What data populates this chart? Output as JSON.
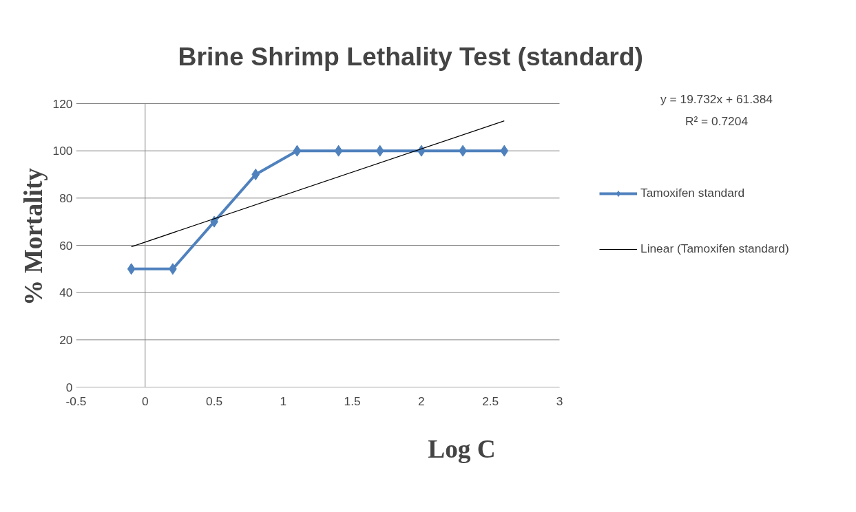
{
  "chart_data": {
    "type": "line",
    "title": "Brine Shrimp Lethality Test (standard)",
    "xlabel": "Log C",
    "ylabel": "% Mortality",
    "x": [
      -0.1,
      0.2,
      0.5,
      0.8,
      1.1,
      1.4,
      1.7,
      2.0,
      2.3,
      2.6
    ],
    "series": [
      {
        "name": "Tamoxifen standard",
        "color": "#4f81bd",
        "values": [
          50,
          50,
          70,
          90,
          100,
          100,
          100,
          100,
          100,
          100
        ],
        "marker": "diamond"
      },
      {
        "name": "Linear (Tamoxifen standard)",
        "type": "line",
        "color": "#000000",
        "x": [
          -0.1,
          2.6
        ],
        "values": [
          59.4,
          112.7
        ],
        "marker": "none"
      }
    ],
    "annotations": [
      "y = 19.732x + 61.384",
      "R² = 0.7204"
    ],
    "xlim": [
      -0.5,
      3
    ],
    "xticks": [
      -0.5,
      0,
      0.5,
      1,
      1.5,
      2,
      2.5,
      3
    ],
    "ylim": [
      0,
      120
    ],
    "yticks": [
      0,
      20,
      40,
      60,
      80,
      100,
      120
    ],
    "ref_lines": [
      {
        "axis": "x",
        "value": 0,
        "color": "#868686"
      }
    ],
    "grid": "y",
    "legend": "right"
  }
}
